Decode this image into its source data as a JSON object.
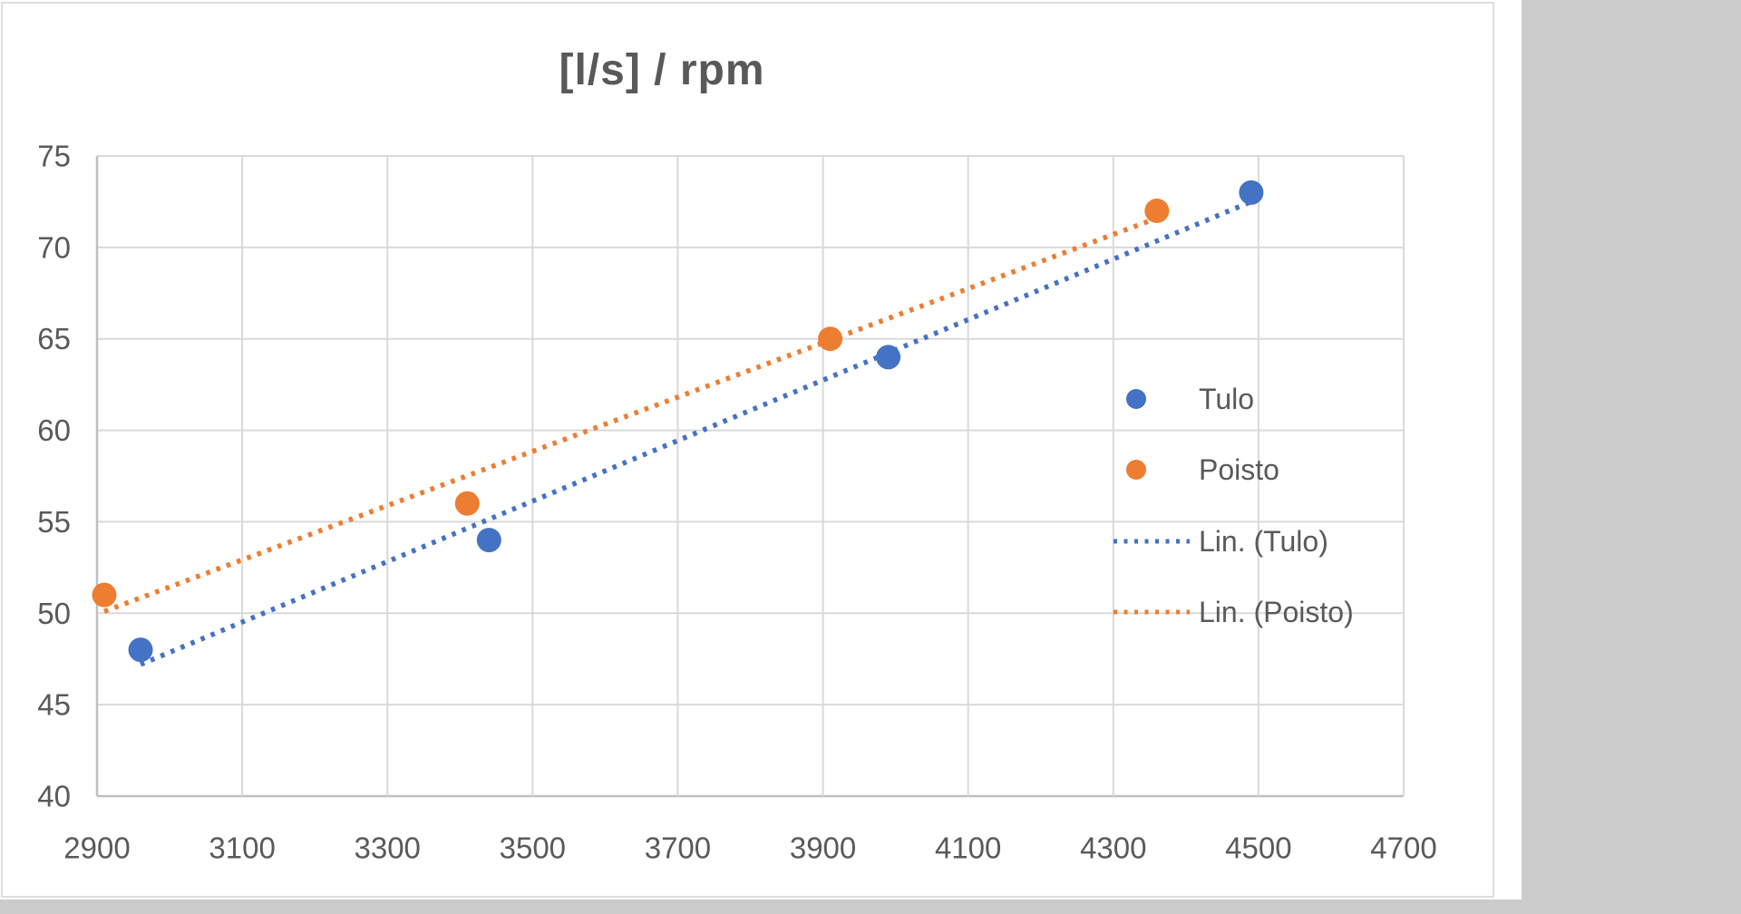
{
  "chart_data": {
    "type": "scatter",
    "title": "[l/s] / rpm",
    "xlabel": "",
    "ylabel": "",
    "xlim": [
      2900,
      4700
    ],
    "ylim": [
      40,
      75
    ],
    "x_ticks": [
      2900,
      3100,
      3300,
      3500,
      3700,
      3900,
      4100,
      4300,
      4500,
      4700
    ],
    "y_ticks": [
      40,
      45,
      50,
      55,
      60,
      65,
      70,
      75
    ],
    "grid": true,
    "colors": {
      "tulo": "#4472C4",
      "poisto": "#ED7D31",
      "gridline": "#D9D9D9",
      "axis_line": "#BFBFBF",
      "text": "#595959"
    },
    "series": [
      {
        "name": "Tulo",
        "color": "#4472C4",
        "points": [
          [
            2960,
            48
          ],
          [
            3440,
            54
          ],
          [
            3990,
            64
          ],
          [
            4490,
            73
          ]
        ]
      },
      {
        "name": "Poisto",
        "color": "#ED7D31",
        "points": [
          [
            2910,
            51
          ],
          [
            3410,
            56
          ],
          [
            3910,
            65
          ],
          [
            4360,
            72
          ]
        ]
      }
    ],
    "trendlines": [
      {
        "name": "Lin. (Tulo)",
        "color": "#4472C4",
        "style": "dotted",
        "start": [
          2960,
          47.2
        ],
        "end": [
          4490,
          72.5
        ]
      },
      {
        "name": "Lin. (Poisto)",
        "color": "#ED7D31",
        "style": "dotted",
        "start": [
          2910,
          50.1
        ],
        "end": [
          4360,
          71.6
        ]
      }
    ],
    "legend": {
      "position": "right-inside",
      "entries": [
        {
          "label": "Tulo",
          "swatch": "dot",
          "color": "#4472C4"
        },
        {
          "label": "Poisto",
          "swatch": "dot",
          "color": "#ED7D31"
        },
        {
          "label": "Lin. (Tulo)",
          "swatch": "dotted-line",
          "color": "#4472C4"
        },
        {
          "label": "Lin. (Poisto)",
          "swatch": "dotted-line",
          "color": "#ED7D31"
        }
      ]
    }
  }
}
